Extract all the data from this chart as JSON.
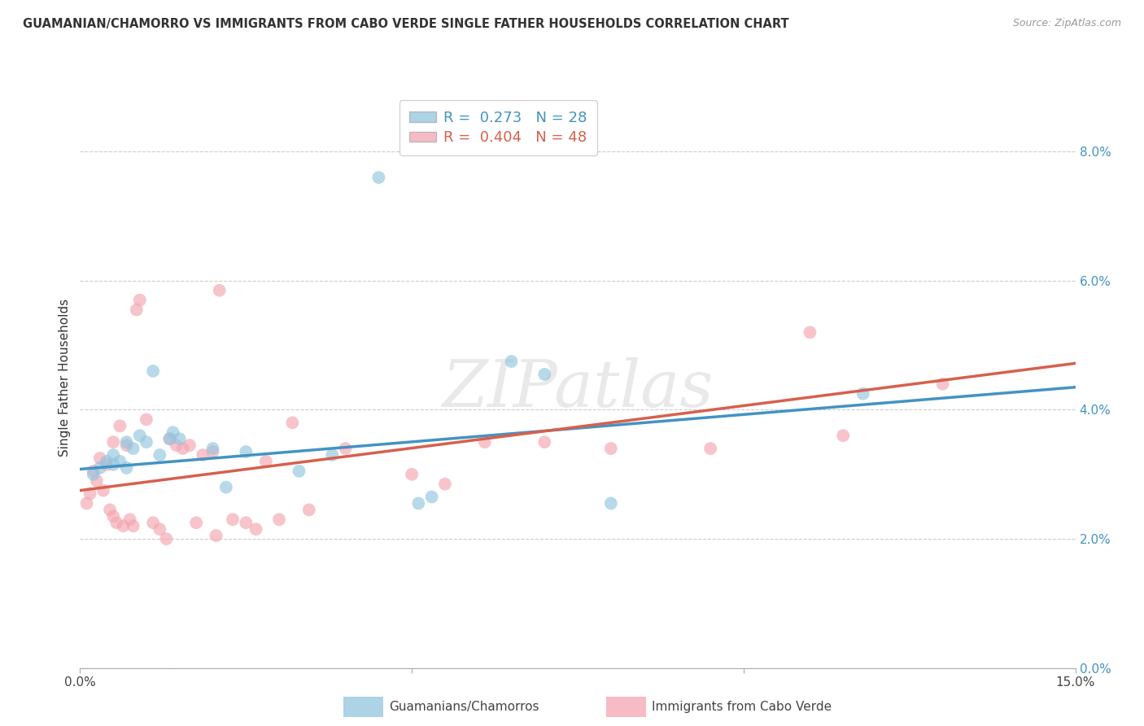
{
  "title": "GUAMANIAN/CHAMORRO VS IMMIGRANTS FROM CABO VERDE SINGLE FATHER HOUSEHOLDS CORRELATION CHART",
  "source": "Source: ZipAtlas.com",
  "ylabel": "Single Father Households",
  "xlim": [
    0.0,
    15.0
  ],
  "ylim": [
    0.0,
    9.0
  ],
  "yticks": [
    0.0,
    2.0,
    4.0,
    6.0,
    8.0
  ],
  "xticks": [
    0.0,
    5.0,
    10.0,
    15.0
  ],
  "xtick_labels": [
    "0.0%",
    "",
    "",
    "15.0%"
  ],
  "legend_blue_R": "0.273",
  "legend_blue_N": "28",
  "legend_pink_R": "0.404",
  "legend_pink_N": "48",
  "blue_color": "#92c5de",
  "pink_color": "#f4a5b0",
  "blue_fill": "#92c5de",
  "pink_fill": "#f4a5b0",
  "blue_line_color": "#4393c3",
  "pink_line_color": "#d6604d",
  "watermark_text": "ZIPatlas",
  "blue_scatter": [
    [
      0.2,
      3.0
    ],
    [
      0.3,
      3.1
    ],
    [
      0.4,
      3.2
    ],
    [
      0.5,
      3.15
    ],
    [
      0.5,
      3.3
    ],
    [
      0.6,
      3.2
    ],
    [
      0.7,
      3.1
    ],
    [
      0.7,
      3.5
    ],
    [
      0.8,
      3.4
    ],
    [
      0.9,
      3.6
    ],
    [
      1.0,
      3.5
    ],
    [
      1.1,
      4.6
    ],
    [
      1.2,
      3.3
    ],
    [
      1.35,
      3.55
    ],
    [
      1.4,
      3.65
    ],
    [
      1.5,
      3.55
    ],
    [
      2.0,
      3.4
    ],
    [
      2.2,
      2.8
    ],
    [
      2.5,
      3.35
    ],
    [
      3.3,
      3.05
    ],
    [
      3.8,
      3.3
    ],
    [
      4.5,
      7.6
    ],
    [
      5.1,
      2.55
    ],
    [
      5.3,
      2.65
    ],
    [
      6.5,
      4.75
    ],
    [
      7.0,
      4.55
    ],
    [
      8.0,
      2.55
    ],
    [
      11.8,
      4.25
    ]
  ],
  "pink_scatter": [
    [
      0.1,
      2.55
    ],
    [
      0.15,
      2.7
    ],
    [
      0.2,
      3.05
    ],
    [
      0.25,
      2.9
    ],
    [
      0.3,
      3.25
    ],
    [
      0.35,
      2.75
    ],
    [
      0.4,
      3.15
    ],
    [
      0.45,
      2.45
    ],
    [
      0.5,
      3.5
    ],
    [
      0.5,
      2.35
    ],
    [
      0.55,
      2.25
    ],
    [
      0.6,
      3.75
    ],
    [
      0.65,
      2.2
    ],
    [
      0.7,
      3.45
    ],
    [
      0.75,
      2.3
    ],
    [
      0.8,
      2.2
    ],
    [
      0.85,
      5.55
    ],
    [
      0.9,
      5.7
    ],
    [
      1.0,
      3.85
    ],
    [
      1.1,
      2.25
    ],
    [
      1.2,
      2.15
    ],
    [
      1.3,
      2.0
    ],
    [
      1.35,
      3.55
    ],
    [
      1.45,
      3.45
    ],
    [
      1.55,
      3.4
    ],
    [
      1.65,
      3.45
    ],
    [
      1.75,
      2.25
    ],
    [
      1.85,
      3.3
    ],
    [
      2.0,
      3.35
    ],
    [
      2.05,
      2.05
    ],
    [
      2.1,
      5.85
    ],
    [
      2.3,
      2.3
    ],
    [
      2.5,
      2.25
    ],
    [
      2.65,
      2.15
    ],
    [
      2.8,
      3.2
    ],
    [
      3.0,
      2.3
    ],
    [
      3.2,
      3.8
    ],
    [
      3.45,
      2.45
    ],
    [
      4.0,
      3.4
    ],
    [
      5.0,
      3.0
    ],
    [
      5.5,
      2.85
    ],
    [
      6.1,
      3.5
    ],
    [
      7.0,
      3.5
    ],
    [
      8.0,
      3.4
    ],
    [
      9.5,
      3.4
    ],
    [
      11.0,
      5.2
    ],
    [
      11.5,
      3.6
    ],
    [
      13.0,
      4.4
    ]
  ],
  "blue_line": [
    [
      0.0,
      3.08
    ],
    [
      15.0,
      4.35
    ]
  ],
  "pink_line": [
    [
      0.0,
      2.75
    ],
    [
      15.0,
      4.72
    ]
  ]
}
